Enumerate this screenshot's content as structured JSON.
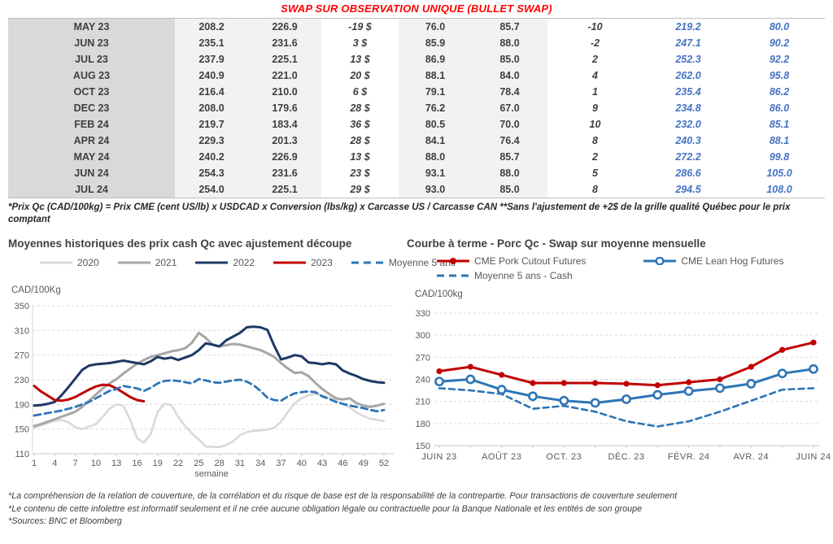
{
  "title": "SWAP SUR OBSERVATION UNIQUE (BULLET SWAP)",
  "table": {
    "rows": [
      [
        "MAY 23",
        "208.2",
        "226.9",
        "-19 $",
        "76.0",
        "85.7",
        "-10",
        "219.2",
        "80.0"
      ],
      [
        "JUN 23",
        "235.1",
        "231.6",
        "3 $",
        "85.9",
        "88.0",
        "-2",
        "247.1",
        "90.2"
      ],
      [
        "JUL 23",
        "237.9",
        "225.1",
        "13 $",
        "86.9",
        "85.0",
        "2",
        "252.3",
        "92.2"
      ],
      [
        "AUG 23",
        "240.9",
        "221.0",
        "20 $",
        "88.1",
        "84.0",
        "4",
        "262.0",
        "95.8"
      ],
      [
        "OCT 23",
        "216.4",
        "210.0",
        "6 $",
        "79.1",
        "78.4",
        "1",
        "235.4",
        "86.2"
      ],
      [
        "DEC 23",
        "208.0",
        "179.6",
        "28 $",
        "76.2",
        "67.0",
        "9",
        "234.8",
        "86.0"
      ],
      [
        "FEB 24",
        "219.7",
        "183.4",
        "36 $",
        "80.5",
        "70.0",
        "10",
        "232.0",
        "85.1"
      ],
      [
        "APR 24",
        "229.3",
        "201.3",
        "28 $",
        "84.1",
        "76.4",
        "8",
        "240.3",
        "88.1"
      ],
      [
        "MAY 24",
        "240.2",
        "226.9",
        "13 $",
        "88.0",
        "85.7",
        "2",
        "272.2",
        "99.8"
      ],
      [
        "JUN 24",
        "254.3",
        "231.6",
        "23 $",
        "93.1",
        "88.0",
        "5",
        "286.6",
        "105.0"
      ],
      [
        "JUL 24",
        "254.0",
        "225.1",
        "29 $",
        "93.0",
        "85.0",
        "8",
        "294.5",
        "108.0"
      ]
    ]
  },
  "table_footnote": "*Prix Qc (CAD/100kg) = Prix CME (cent US/lb) x USDCAD x Conversion (lbs/kg) x Carcasse US / Carcasse CAN **Sans l'ajustement de +2$ de la grille qualité Québec pour le prix comptant",
  "footnotes": [
    "*La compréhension de la relation de couverture, de la corrélation et du risque de base est de la responsabilité de la contrepartie. Pour transactions de couverture seulement",
    "*Le contenu de cette infolettre est informatif seulement et il ne crée aucune obligation légale ou contractuelle pour la Banque Nationale et les entités de son groupe",
    "*Sources: BNC et Bloomberg"
  ],
  "colors": {
    "title_red": "#ff0000",
    "table_green": "#00b050",
    "table_red": "#ff0000",
    "table_blue": "#4472c4",
    "gridline": "#d9d9d9",
    "axis_text": "#595959"
  },
  "chart_data": [
    {
      "type": "line",
      "title": "Moyennes historiques des prix cash Qc avec ajustement découpe",
      "unit_label": "CAD/100Kg",
      "xlabel": "semaine",
      "ylim": [
        110,
        350
      ],
      "ytick_step": 40,
      "x_ticks": [
        1,
        4,
        7,
        10,
        13,
        16,
        19,
        22,
        25,
        28,
        31,
        34,
        37,
        40,
        43,
        46,
        49,
        52
      ],
      "grid": "dashed-horizontal",
      "legend_position": "top",
      "series": [
        {
          "name": "2020",
          "color": "#d9d9d9",
          "style": "solid",
          "x_start": 1,
          "values": [
            152,
            156,
            160,
            163,
            165,
            161,
            153,
            150,
            154,
            158,
            170,
            183,
            190,
            188,
            165,
            135,
            128,
            142,
            178,
            191,
            189,
            170,
            155,
            143,
            133,
            122,
            121,
            121,
            124,
            130,
            140,
            145,
            147,
            148,
            149,
            152,
            162,
            178,
            192,
            200,
            205,
            207,
            205,
            201,
            196,
            191,
            185,
            177,
            171,
            167,
            165,
            163
          ]
        },
        {
          "name": "2021",
          "color": "#a6a6a6",
          "style": "solid",
          "x_start": 1,
          "values": [
            155,
            158,
            162,
            166,
            170,
            174,
            178,
            186,
            196,
            206,
            216,
            224,
            231,
            240,
            248,
            256,
            262,
            267,
            270,
            273,
            276,
            278,
            281,
            290,
            306,
            298,
            287,
            284,
            286,
            288,
            287,
            284,
            281,
            278,
            273,
            267,
            257,
            248,
            241,
            242,
            236,
            225,
            215,
            207,
            200,
            198,
            200,
            192,
            188,
            186,
            188,
            191
          ]
        },
        {
          "name": "2022",
          "color": "#1f3864",
          "style": "solid",
          "x_start": 1,
          "values": [
            188,
            189,
            191,
            194,
            205,
            218,
            232,
            246,
            253,
            255,
            256,
            257,
            259,
            261,
            259,
            257,
            255,
            260,
            267,
            264,
            266,
            262,
            266,
            270,
            278,
            289,
            287,
            284,
            294,
            300,
            306,
            315,
            316,
            315,
            311,
            285,
            263,
            266,
            270,
            268,
            258,
            257,
            255,
            257,
            255,
            245,
            240,
            236,
            231,
            228,
            226,
            225
          ]
        },
        {
          "name": "2023",
          "color": "#c00000",
          "style": "solid",
          "x_start": 1,
          "values": [
            220,
            211,
            204,
            197,
            196,
            198,
            202,
            208,
            214,
            219,
            222,
            221,
            216,
            209,
            202,
            197,
            195
          ]
        },
        {
          "name": "Moyenne 5 ans",
          "color": "#2e75b6",
          "style": "dashed",
          "x_start": 1,
          "values": [
            172,
            174,
            176,
            178,
            180,
            183,
            186,
            190,
            194,
            200,
            206,
            212,
            215,
            220,
            218,
            216,
            212,
            217,
            224,
            228,
            229,
            228,
            226,
            224,
            231,
            229,
            226,
            225,
            227,
            229,
            230,
            227,
            221,
            212,
            201,
            197,
            196,
            203,
            208,
            210,
            211,
            210,
            203,
            199,
            194,
            191,
            188,
            186,
            184,
            181,
            179,
            181
          ]
        }
      ]
    },
    {
      "type": "line",
      "title": "Courbe à terme - Porc Qc - Swap sur moyenne mensuelle",
      "unit_label": "CAD/100kg",
      "ylim": [
        150,
        330
      ],
      "ytick_step": 30,
      "x_tick_labels": [
        "JUIN 23",
        "AOÛT 23",
        "OCT. 23",
        "DÉC. 23",
        "FÉVR. 24",
        "AVR. 24",
        "JUIN 24"
      ],
      "points_per_series": 13,
      "grid": "dashed-horizontal",
      "legend_position": "top",
      "series": [
        {
          "name": "CME Pork Cutout Futures",
          "color": "#c00000",
          "style": "solid",
          "marker": "filled",
          "values": [
            251,
            257,
            246,
            235,
            235,
            235,
            234,
            232,
            236,
            240,
            257,
            280,
            290
          ]
        },
        {
          "name": "CME Lean Hog Futures",
          "color": "#2e75b6",
          "style": "solid",
          "marker": "open",
          "values": [
            237,
            240,
            226,
            217,
            211,
            208,
            213,
            219,
            224,
            228,
            234,
            248,
            254
          ]
        },
        {
          "name": "Moyenne 5 ans - Cash",
          "color": "#2e75b6",
          "style": "dashed",
          "values": [
            228,
            225,
            220,
            200,
            204,
            196,
            183,
            176,
            183,
            196,
            211,
            226,
            228
          ]
        }
      ]
    }
  ]
}
